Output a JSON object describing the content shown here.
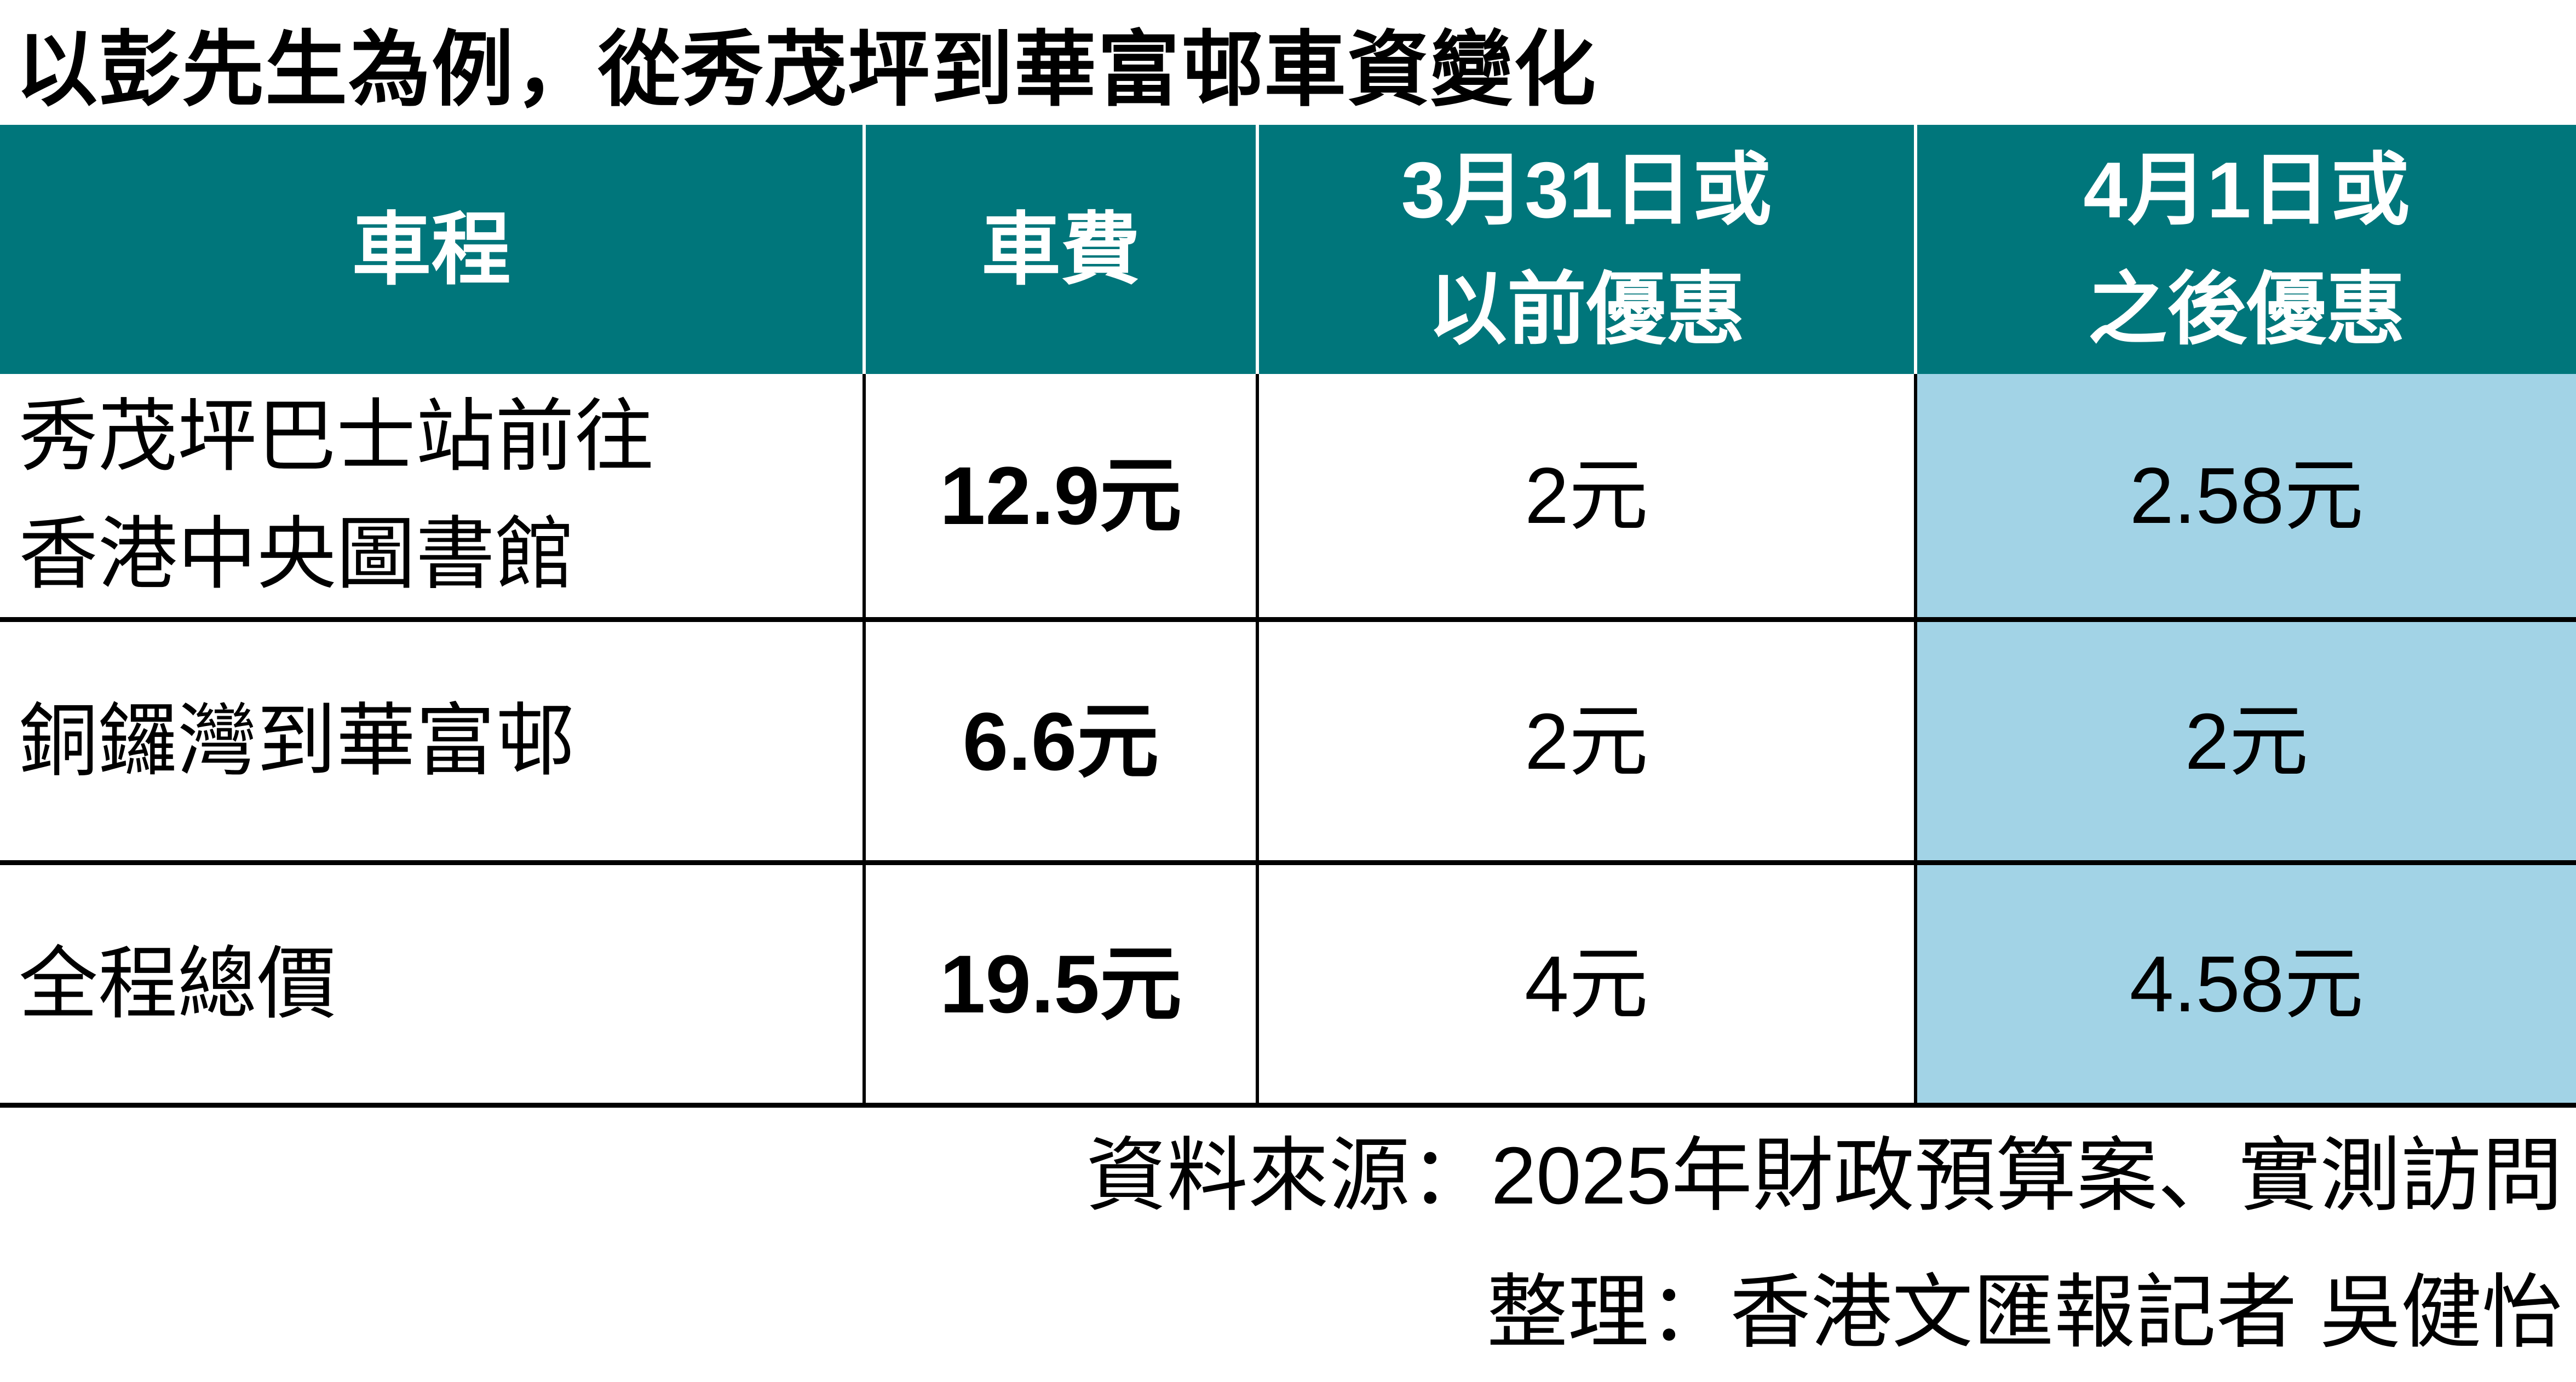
{
  "page": {
    "background": "#FFFFFF"
  },
  "title": "以彭先生為例，從秀茂坪到華富邨車資變化",
  "colors": {
    "header_bg": "#00767B",
    "header_text": "#FFFFFF",
    "highlight_bg": "#A2D3E6",
    "body_text": "#000000",
    "grid_line": "#000000",
    "header_divider": "#FFFFFF"
  },
  "table": {
    "header": {
      "journey": [
        "車程"
      ],
      "fare": [
        "車費"
      ],
      "before": [
        "3月31日或",
        "以前優惠"
      ],
      "after": [
        "4月1日或",
        "之後優惠"
      ]
    },
    "rows": [
      {
        "journey": [
          "秀茂坪巴士站前往",
          "香港中央圖書館"
        ],
        "fare": "12.9元",
        "before": "2元",
        "after": "2.58元"
      },
      {
        "journey": [
          "銅鑼灣到華富邨"
        ],
        "fare": "6.6元",
        "before": "2元",
        "after": "2元"
      },
      {
        "journey": [
          "全程總價"
        ],
        "fare": "19.5元",
        "before": "4元",
        "after": "4.58元"
      }
    ]
  },
  "footer": {
    "source": "資料來源：2025年財政預算案、實測訪問",
    "credit": "整理：香港文匯報記者 吳健怡"
  },
  "chart_data": {
    "type": "table",
    "title": "以彭先生為例，從秀茂坪到華富邨車資變化",
    "columns": [
      "車程",
      "車費",
      "3月31日或以前優惠",
      "4月1日或之後優惠"
    ],
    "rows": [
      [
        "秀茂坪巴士站前往香港中央圖書館",
        "12.9元",
        "2元",
        "2.58元"
      ],
      [
        "銅鑼灣到華富邨",
        "6.6元",
        "2元",
        "2元"
      ],
      [
        "全程總價",
        "19.5元",
        "4元",
        "4.58元"
      ]
    ],
    "values_numeric": {
      "fare": [
        12.9,
        6.6,
        19.5
      ],
      "discount_before_mar31": [
        2,
        2,
        4
      ],
      "discount_after_apr1": [
        2.58,
        2,
        4.58
      ]
    },
    "unit": "元",
    "highlight_column": "4月1日或之後優惠",
    "source": "資料來源：2025年財政預算案、實測訪問",
    "credit": "整理：香港文匯報記者 吳健怡"
  }
}
